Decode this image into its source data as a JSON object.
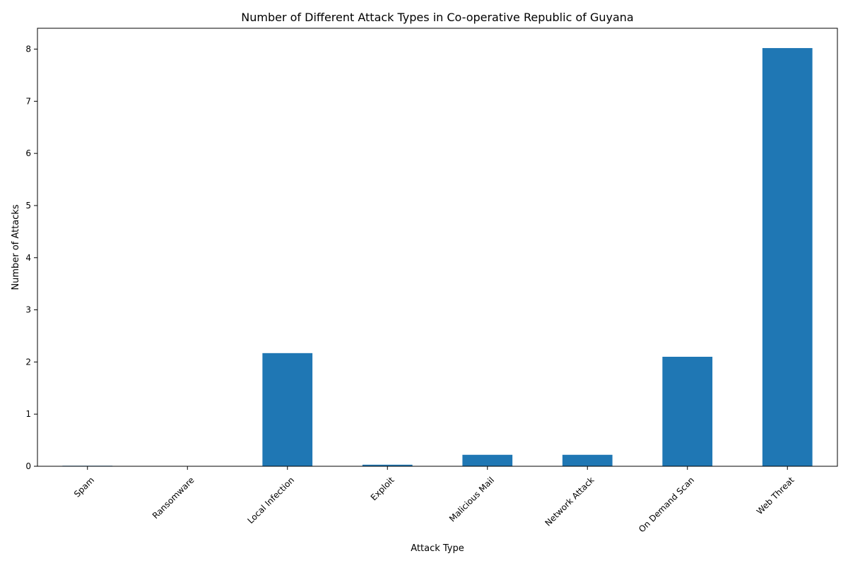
{
  "chart_data": {
    "type": "bar",
    "title": "Number of Different Attack Types in Co-operative Republic of Guyana",
    "xlabel": "Attack Type",
    "ylabel": "Number of Attacks",
    "categories": [
      "Spam",
      "Ransomware",
      "Local Infection",
      "Exploit",
      "Malicious Mail",
      "Network Attack",
      "On Demand Scan",
      "Web Threat"
    ],
    "values": [
      0.01,
      0.0,
      2.17,
      0.03,
      0.22,
      0.22,
      2.1,
      8.02
    ],
    "ylim": [
      0,
      8.4
    ],
    "yticks": [
      0,
      1,
      2,
      3,
      4,
      5,
      6,
      7,
      8
    ],
    "bar_color": "#1f77b4",
    "grid": false,
    "legend": "none"
  }
}
